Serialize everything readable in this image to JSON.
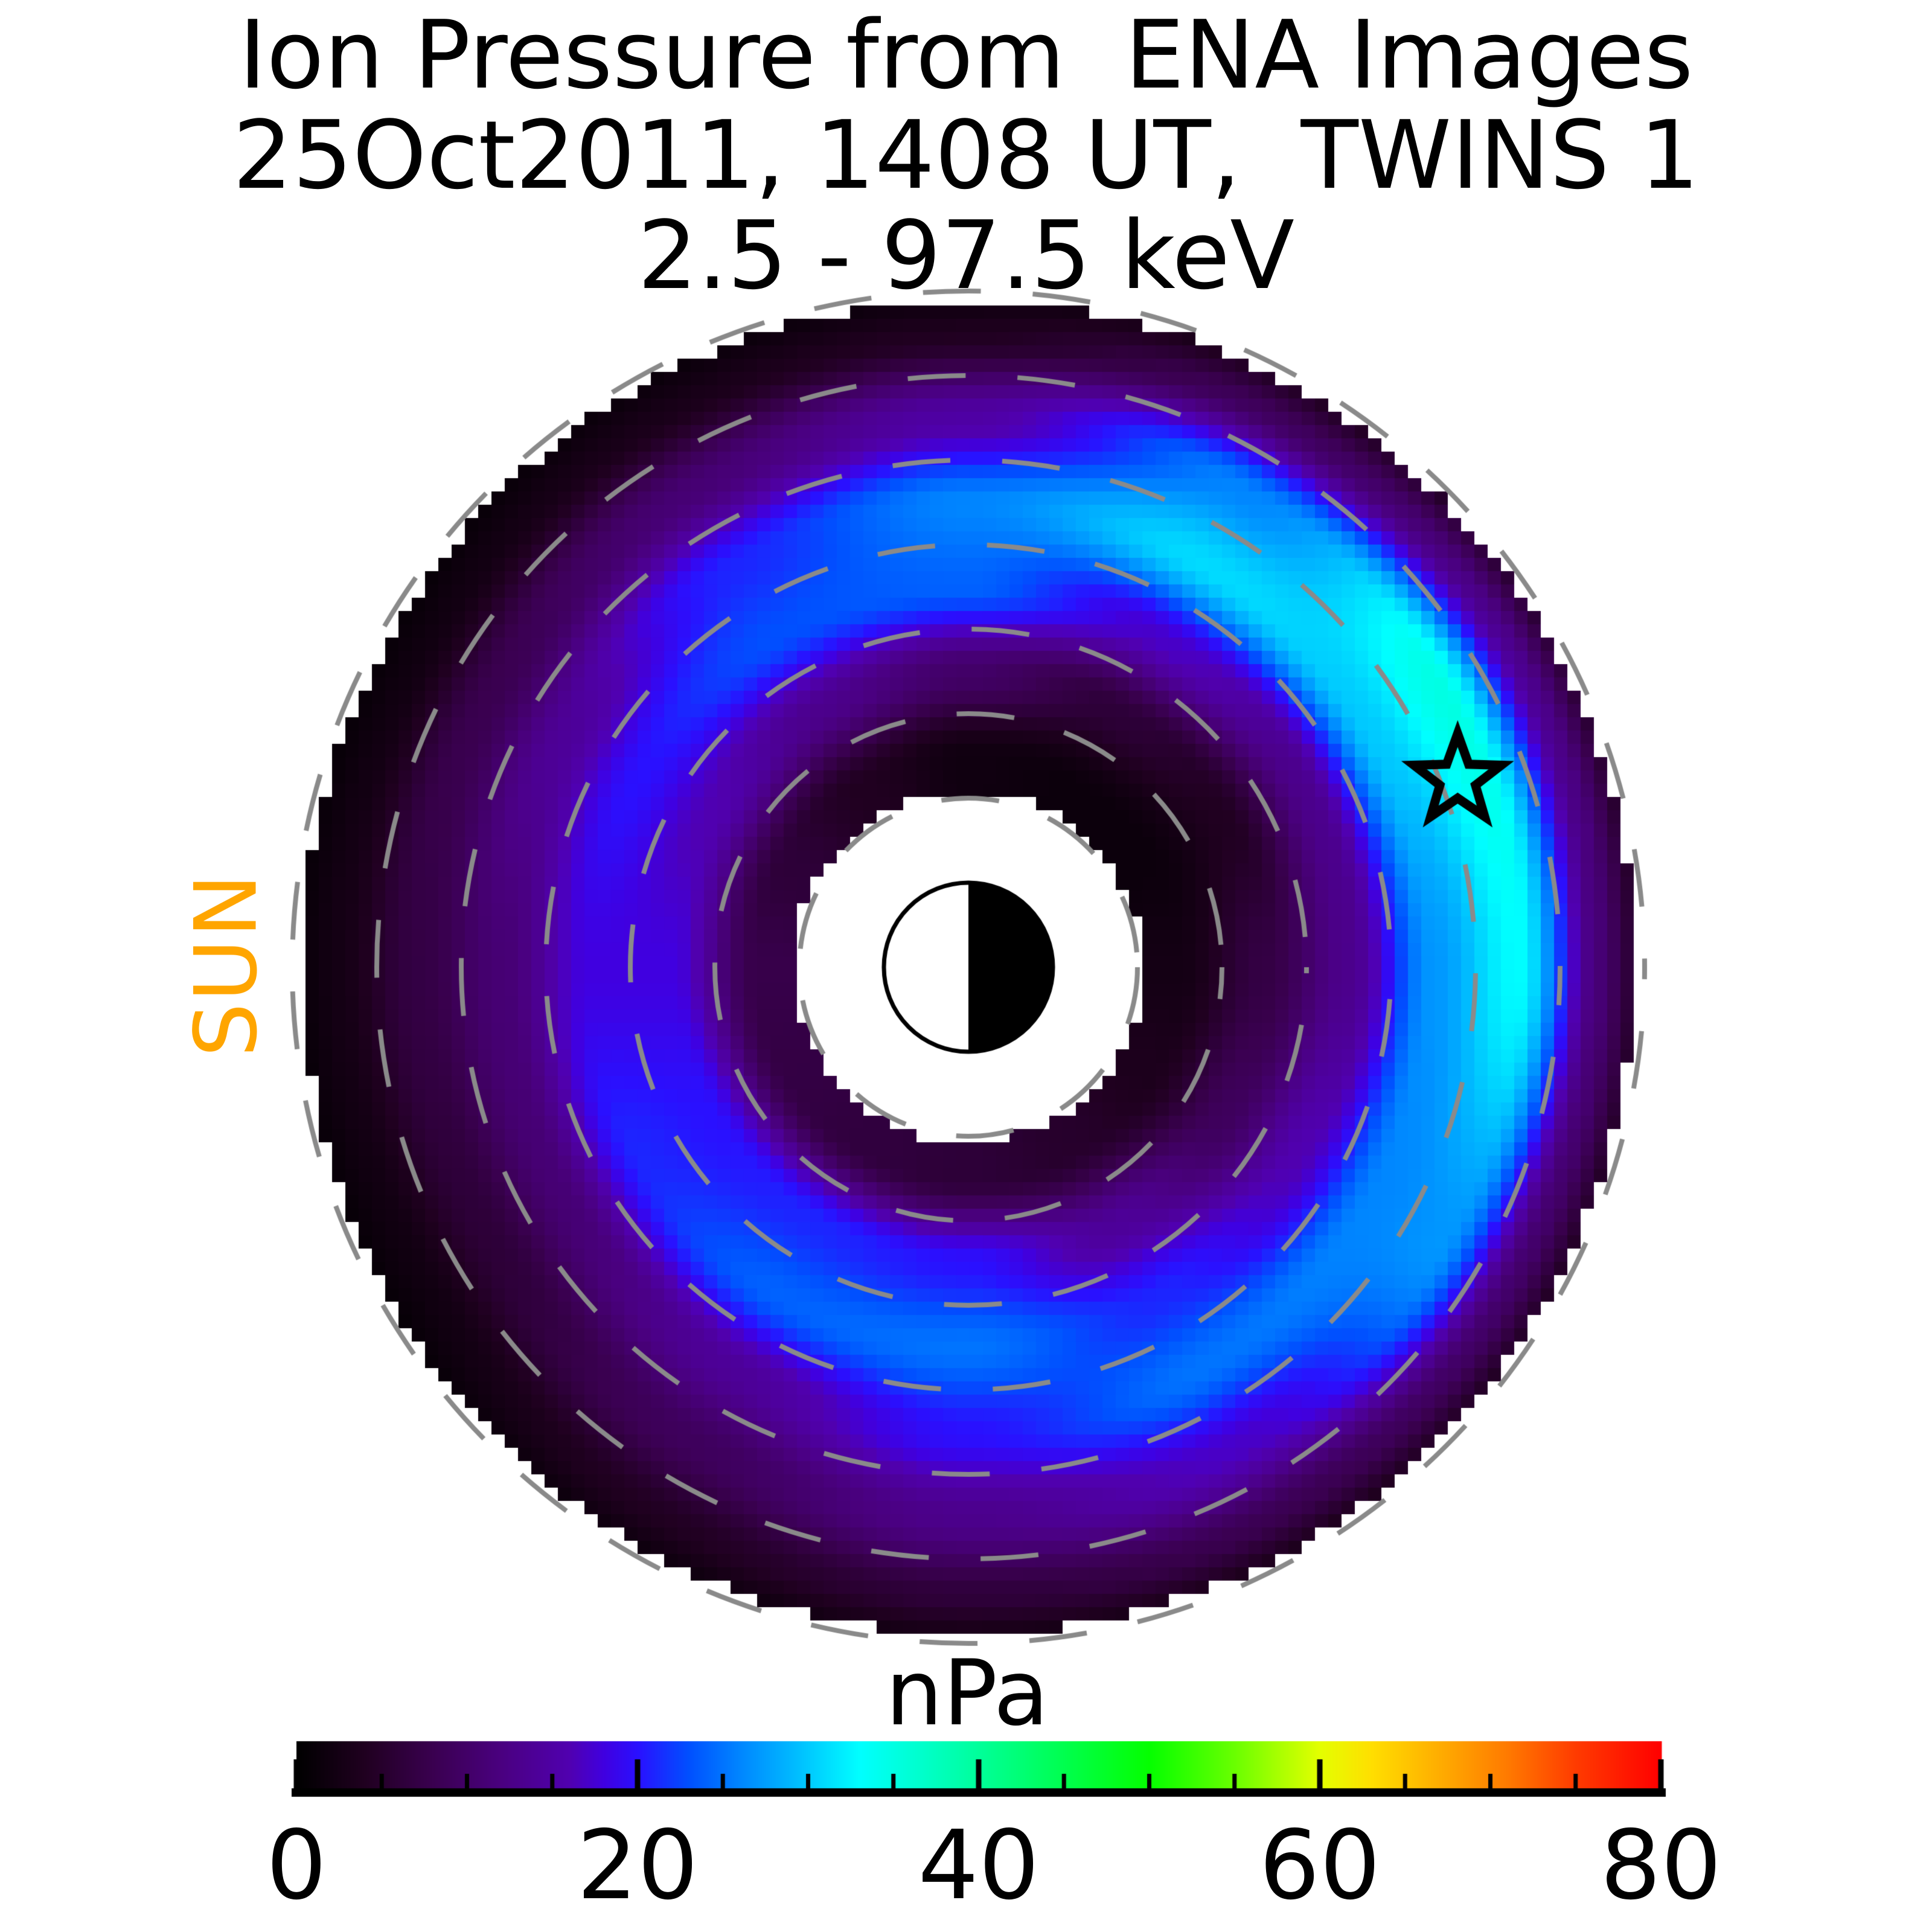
{
  "title": {
    "line1": "Ion Pressure from  ENA Images",
    "line2": "25Oct2011, 1408 UT,  TWINS 1",
    "line3": "2.5 - 97.5 keV"
  },
  "labels": {
    "sun": "SUN",
    "sun_direction": "left",
    "colorbar_title": "nPa"
  },
  "colors": {
    "background": "#ffffff",
    "sun_label": "#FFA500",
    "ring_dash": "#8a8a8a",
    "marker_outline": "#000000"
  },
  "colorbar": {
    "title": "nPa",
    "min": 0,
    "max": 80,
    "tick_values": [
      0,
      20,
      40,
      60,
      80
    ],
    "tick_labels": [
      "0",
      "20",
      "40",
      "60",
      "80"
    ],
    "minor_tick_step": 5
  },
  "chart_data": {
    "type": "heatmap",
    "projection": "polar",
    "title": "Ion Pressure from ENA Images",
    "subtitle": "25Oct2011, 1408 UT, TWINS 1, 2.5 - 97.5 keV",
    "units": "nPa",
    "radius_unit": "Re",
    "value_range": [
      0,
      80
    ],
    "r_inner": 2.07,
    "r_outer": 7.88,
    "dashed_rings_re": [
      2,
      3,
      4,
      5,
      6,
      7,
      8
    ],
    "azimuth_convention": "degrees CCW from image-right (+x axis); Sun is at 180 deg (image left)",
    "azimuths_deg": [
      0,
      30,
      60,
      90,
      120,
      150,
      180,
      210,
      240,
      270,
      300,
      330
    ],
    "radii_re": [
      2.5,
      3.5,
      4.5,
      5.5,
      6.5,
      7.5
    ],
    "pressure_npa": [
      [
        2.5,
        1.5,
        1.5,
        2.0,
        4.0,
        6.0,
        7.5,
        7.0,
        6.5,
        6.0,
        5.0,
        3.5
      ],
      [
        7.0,
        4.0,
        6.0,
        10.0,
        13.0,
        16.0,
        18.0,
        20.0,
        21.0,
        20.0,
        14.0,
        9.0
      ],
      [
        13.0,
        13.0,
        17.0,
        24.0,
        23.0,
        20.0,
        18.0,
        21.0,
        24.0,
        25.0,
        21.0,
        16.0
      ],
      [
        27.0,
        30.0,
        31.0,
        26.0,
        21.0,
        14.0,
        11.0,
        11.0,
        14.0,
        20.0,
        25.0,
        26.0
      ],
      [
        33.0,
        35.0,
        26.0,
        15.0,
        11.0,
        8.0,
        7.0,
        6.0,
        9.0,
        13.0,
        17.0,
        27.0
      ],
      [
        11.0,
        13.0,
        9.0,
        4.0,
        3.0,
        2.0,
        2.5,
        2.0,
        4.0,
        6.0,
        8.0,
        10.0
      ]
    ],
    "star_marker": {
      "r_re": 6.2,
      "azimuth_deg": 21,
      "meaning": "pressure peak marker"
    },
    "earth": {
      "radius_re": 1.0,
      "dayside_half": "left-white",
      "nightside_half": "right-black"
    },
    "colormap_stops": [
      [
        0,
        "#000000"
      ],
      [
        4,
        "#200020"
      ],
      [
        8,
        "#3a0050"
      ],
      [
        12,
        "#4a0080"
      ],
      [
        16,
        "#5000b0"
      ],
      [
        18,
        "#4000e0"
      ],
      [
        20,
        "#2a10ff"
      ],
      [
        23,
        "#0050ff"
      ],
      [
        26,
        "#0086ff"
      ],
      [
        29,
        "#00b8ff"
      ],
      [
        33,
        "#00ffff"
      ],
      [
        36,
        "#00ffd5"
      ],
      [
        40,
        "#00ff9a"
      ],
      [
        45,
        "#00ff4e"
      ],
      [
        50,
        "#05ff00"
      ],
      [
        55,
        "#6aff00"
      ],
      [
        60,
        "#e4ff00"
      ],
      [
        63,
        "#ffdf00"
      ],
      [
        67,
        "#ffad00"
      ],
      [
        71,
        "#ff7a00"
      ],
      [
        75,
        "#ff3b00"
      ],
      [
        80,
        "#ff0000"
      ]
    ],
    "legend_position": "bottom-colorbar",
    "grid": "dashed L-shell circles every 1 Re from 2 to 8 Re"
  }
}
